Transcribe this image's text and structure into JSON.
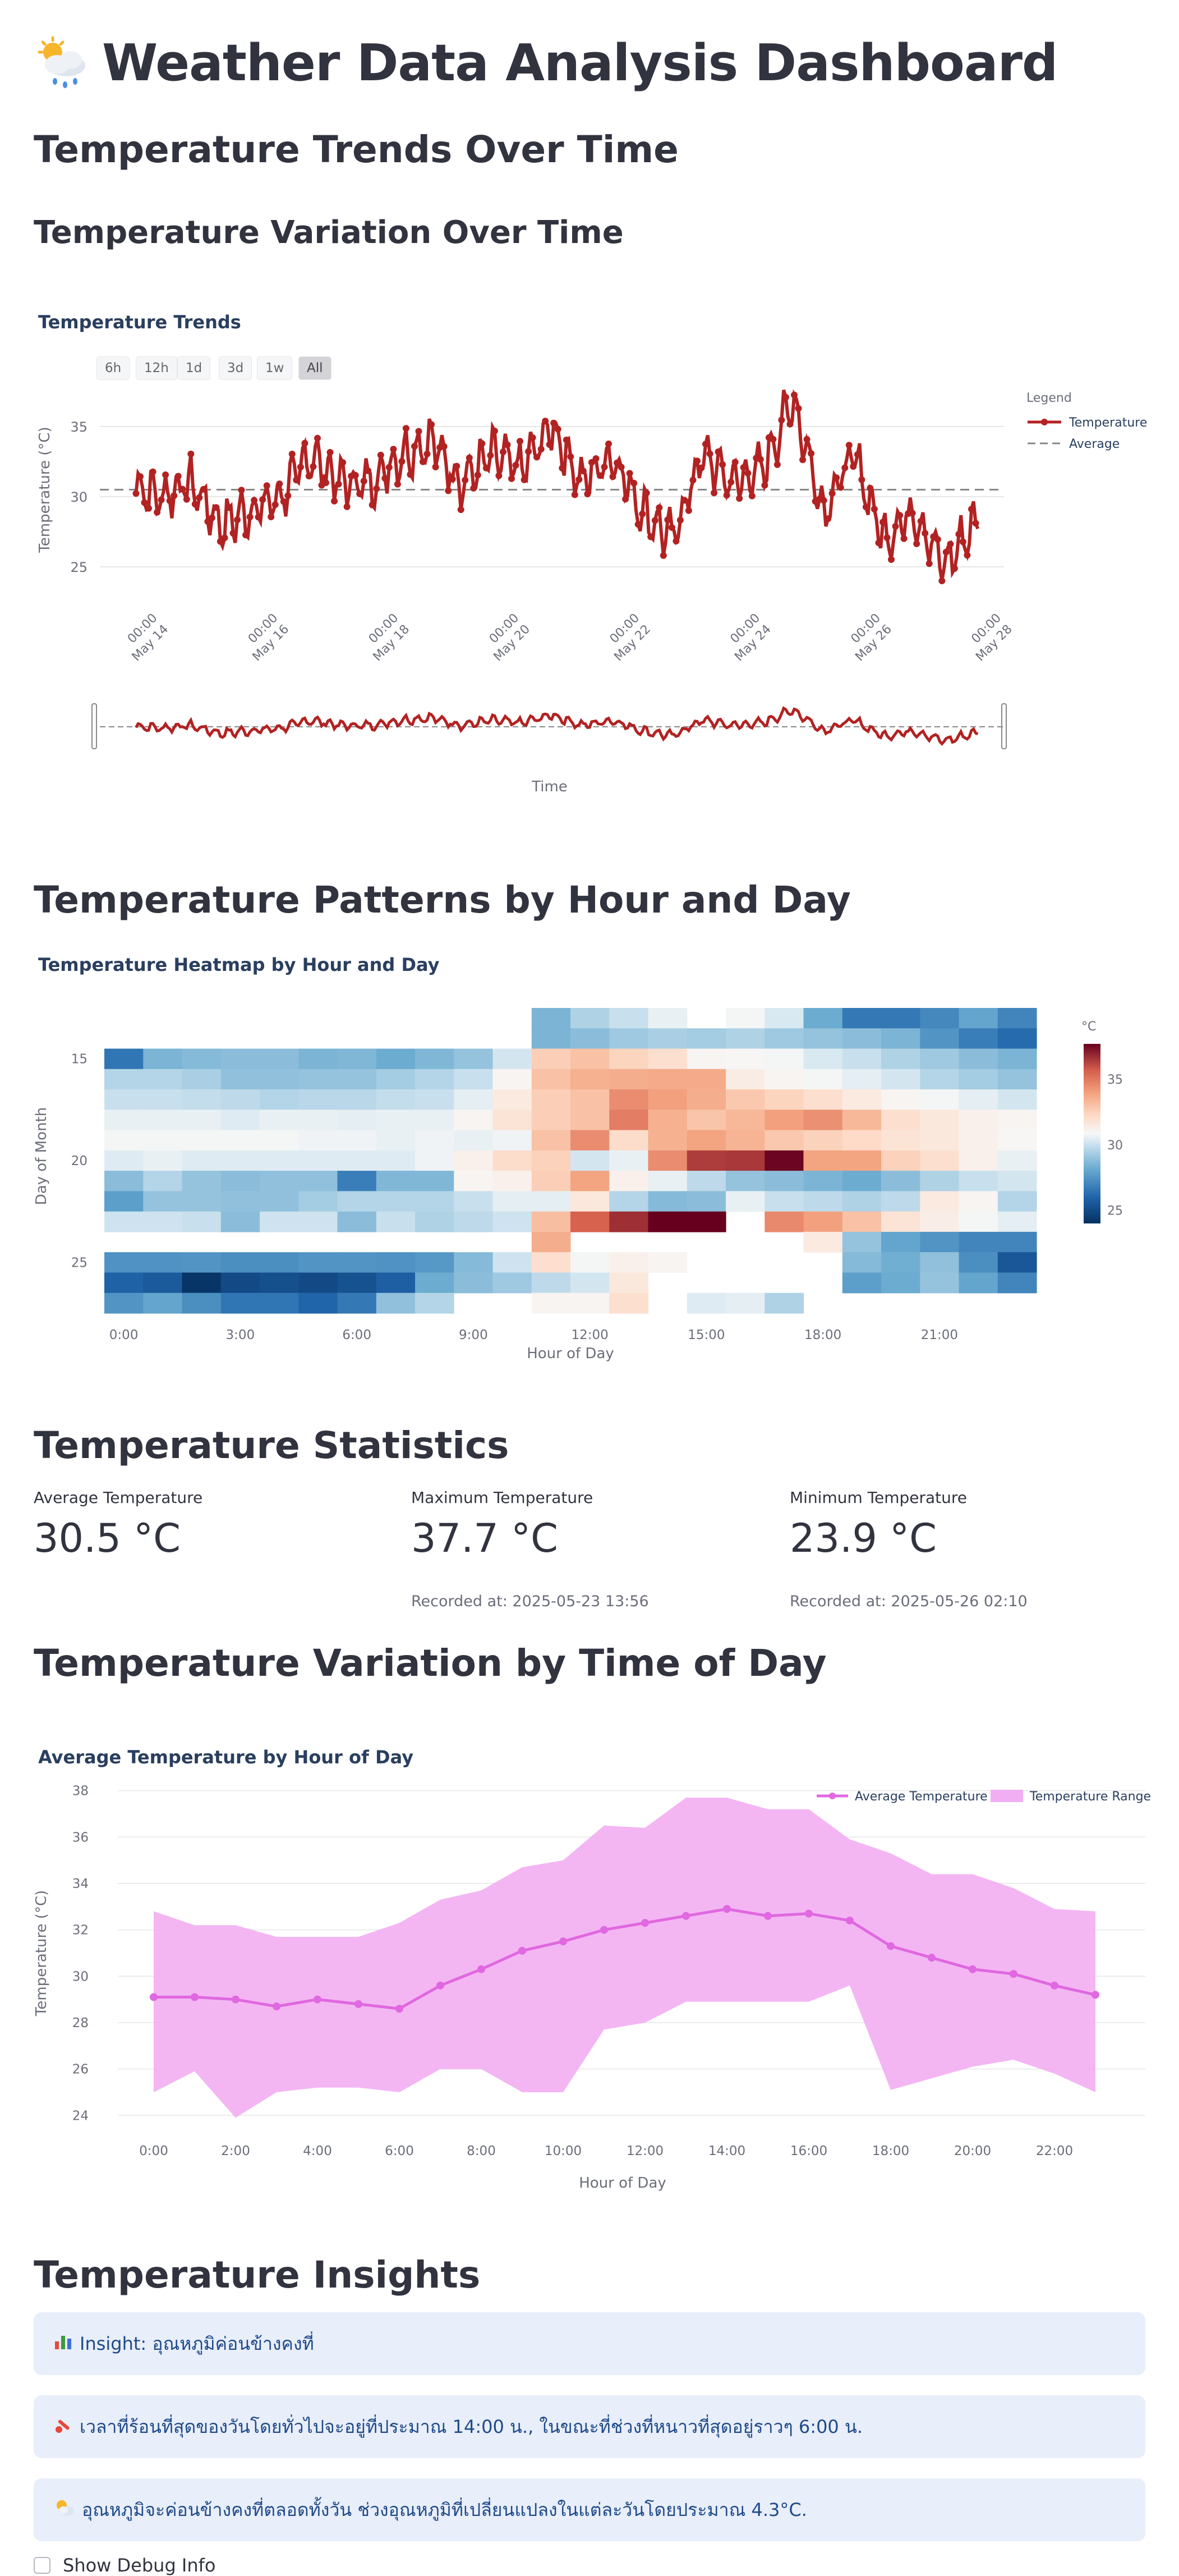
{
  "header": {
    "title": "Weather Data Analysis Dashboard",
    "icon": "cloud-sun-rain-icon"
  },
  "sections": {
    "trends": "Temperature Trends Over Time",
    "variation": "Temperature Variation Over Time",
    "patterns": "Temperature Patterns by Hour and Day",
    "statistics": "Temperature Statistics",
    "time_of_day": "Temperature Variation by Time of Day",
    "insights": "Temperature Insights"
  },
  "trend_chart": {
    "title": "Temperature Trends",
    "range_buttons": [
      "6h",
      "12h",
      "1d",
      "3d",
      "1w",
      "All"
    ],
    "active_range": "All",
    "ylabel": "Temperature (°C)",
    "xlabel": "Time",
    "y_ticks": [
      "35",
      "30",
      "25"
    ],
    "x_ticks": [
      {
        "time": "00:00",
        "date": "May 14"
      },
      {
        "time": "00:00",
        "date": "May 16"
      },
      {
        "time": "00:00",
        "date": "May 18"
      },
      {
        "time": "00:00",
        "date": "May 20"
      },
      {
        "time": "00:00",
        "date": "May 22"
      },
      {
        "time": "00:00",
        "date": "May 24"
      },
      {
        "time": "00:00",
        "date": "May 26"
      },
      {
        "time": "00:00",
        "date": "May 28"
      }
    ],
    "legend_title": "Legend",
    "legend": [
      "Temperature",
      "Average"
    ],
    "line_color": "#b22222",
    "avg_color": "#888888"
  },
  "heatmap": {
    "title": "Temperature Heatmap by Hour and Day",
    "ylabel": "Day of Month",
    "xlabel": "Hour of Day",
    "x_ticks": [
      "0:00",
      "3:00",
      "6:00",
      "9:00",
      "12:00",
      "15:00",
      "18:00",
      "21:00"
    ],
    "y_ticks": [
      "15",
      "20",
      "25"
    ],
    "colorbar_title": "°C",
    "colorbar_ticks": [
      "35",
      "30",
      "25"
    ]
  },
  "stats": [
    {
      "label": "Average Temperature",
      "value": "30.5 °C",
      "sub": ""
    },
    {
      "label": "Maximum Temperature",
      "value": "37.7 °C",
      "sub": "Recorded at: 2025-05-23 13:56"
    },
    {
      "label": "Minimum Temperature",
      "value": "23.9 °C",
      "sub": "Recorded at: 2025-05-26 02:10"
    }
  ],
  "hourly_chart": {
    "title": "Average Temperature by Hour of Day",
    "ylabel": "Temperature (°C)",
    "xlabel": "Hour of Day",
    "legend": [
      "Average Temperature",
      "Temperature Range"
    ],
    "y_ticks": [
      "38",
      "36",
      "34",
      "32",
      "30",
      "28",
      "26",
      "24"
    ],
    "x_ticks": [
      "0:00",
      "2:00",
      "4:00",
      "6:00",
      "8:00",
      "10:00",
      "12:00",
      "14:00",
      "16:00",
      "18:00",
      "20:00",
      "22:00"
    ],
    "line_color": "#e068e0",
    "fill_color": "#f2aef2"
  },
  "chart_data": [
    {
      "type": "line",
      "title": "Average Temperature by Hour of Day",
      "xlabel": "Hour of Day",
      "ylabel": "Temperature (°C)",
      "x": [
        0,
        1,
        2,
        3,
        4,
        5,
        6,
        7,
        8,
        9,
        10,
        11,
        12,
        13,
        14,
        15,
        16,
        17,
        18,
        19,
        20,
        21,
        22,
        23
      ],
      "ylim": [
        23.5,
        38.5
      ],
      "series": [
        {
          "name": "Average Temperature",
          "values": [
            29.1,
            29.1,
            29.0,
            28.7,
            29.0,
            28.8,
            28.6,
            29.6,
            30.3,
            31.1,
            31.5,
            32.0,
            32.3,
            32.6,
            32.9,
            32.6,
            32.7,
            32.4,
            31.3,
            30.8,
            30.3,
            30.1,
            29.6,
            29.2
          ]
        },
        {
          "name": "Temperature Range",
          "upper": [
            32.8,
            32.2,
            32.2,
            31.7,
            31.7,
            31.7,
            32.3,
            33.3,
            33.7,
            34.7,
            35.0,
            36.5,
            36.4,
            37.7,
            37.7,
            37.2,
            37.2,
            35.9,
            35.3,
            34.4,
            34.4,
            33.8,
            32.9,
            32.8
          ],
          "lower": [
            25.0,
            25.9,
            23.9,
            25.0,
            25.2,
            25.2,
            25.0,
            26.0,
            26.0,
            25.0,
            25.0,
            27.7,
            28.0,
            28.9,
            28.9,
            28.9,
            28.9,
            29.6,
            25.1,
            25.6,
            26.1,
            26.4,
            25.8,
            25.0
          ]
        }
      ],
      "grid": true,
      "legend": "top-right"
    },
    {
      "type": "line",
      "title": "Temperature Trends",
      "xlabel": "Time",
      "ylabel": "Temperature (°C)",
      "x_range": [
        "2025-05-13",
        "2025-05-28"
      ],
      "ylim": [
        23,
        38
      ],
      "series": [
        {
          "name": "Temperature",
          "x": [
            "05-13 00:00",
            "05-13 12:00",
            "05-14 00:00",
            "05-14 12:00",
            "05-15 00:00",
            "05-15 12:00",
            "05-16 00:00",
            "05-16 12:00",
            "05-17 00:00",
            "05-17 12:00",
            "05-18 00:00",
            "05-18 12:00",
            "05-19 00:00",
            "05-19 12:00",
            "05-20 00:00",
            "05-20 12:00",
            "05-21 00:00",
            "05-21 12:00",
            "05-22 00:00",
            "05-22 12:00",
            "05-23 00:00",
            "05-23 12:00",
            "05-24 00:00",
            "05-24 12:00",
            "05-25 00:00",
            "05-25 12:00",
            "05-26 00:00",
            "05-26 12:00",
            "05-27 00:00",
            "05-27 12:00",
            "05-28 00:00"
          ],
          "values": [
            29,
            31,
            30,
            31,
            28,
            29,
            30,
            33,
            31,
            31,
            33,
            34,
            31,
            33,
            32,
            35,
            31,
            33,
            29,
            27,
            33,
            31,
            32,
            37,
            29,
            33,
            27,
            29,
            25,
            28,
            30
          ]
        },
        {
          "name": "Average",
          "values": [
            30.5
          ]
        }
      ],
      "legend": "top-right"
    },
    {
      "type": "heatmap",
      "title": "Temperature Heatmap by Hour and Day",
      "xlabel": "Hour of Day",
      "ylabel": "Day of Month",
      "x": [
        0,
        1,
        2,
        3,
        4,
        5,
        6,
        7,
        8,
        9,
        10,
        11,
        12,
        13,
        14,
        15,
        16,
        17,
        18,
        19,
        20,
        21,
        22,
        23
      ],
      "y": [
        13,
        14,
        15,
        16,
        17,
        18,
        19,
        20,
        21,
        22,
        23,
        24,
        25,
        26,
        27
      ],
      "zlim": [
        24,
        37.7
      ],
      "z": [
        [
          null,
          null,
          null,
          null,
          null,
          null,
          null,
          null,
          null,
          null,
          null,
          28.5,
          29.5,
          30.0,
          30.6,
          null,
          30.8,
          30.3,
          28.2,
          26.6,
          26.6,
          27.1,
          28.0,
          27.0
        ],
        [
          null,
          null,
          null,
          null,
          null,
          null,
          null,
          null,
          null,
          null,
          null,
          28.5,
          28.8,
          29.2,
          29.4,
          29.3,
          29.5,
          29.2,
          29.0,
          28.8,
          28.5,
          27.5,
          26.8,
          26.2
        ],
        [
          26.5,
          28.5,
          28.7,
          28.8,
          28.8,
          28.5,
          28.6,
          28.2,
          28.6,
          29.0,
          30.2,
          32.6,
          33.0,
          32.4,
          32.0,
          31.0,
          30.9,
          30.8,
          30.3,
          30.0,
          29.5,
          29.2,
          28.8,
          28.5
        ],
        [
          29.6,
          29.6,
          29.4,
          28.9,
          28.9,
          29.0,
          29.0,
          29.3,
          29.6,
          30.0,
          31.0,
          33.0,
          33.5,
          33.6,
          33.7,
          33.7,
          31.4,
          31.0,
          30.8,
          30.5,
          30.2,
          29.6,
          29.3,
          29.0
        ],
        [
          30.0,
          30.0,
          29.9,
          29.8,
          29.6,
          29.7,
          29.7,
          29.9,
          30.0,
          30.5,
          31.5,
          32.6,
          33.0,
          34.5,
          34.0,
          33.6,
          32.8,
          32.4,
          32.0,
          31.5,
          31.0,
          30.8,
          30.5,
          30.2
        ],
        [
          30.6,
          30.6,
          30.6,
          30.4,
          30.6,
          30.6,
          30.5,
          30.6,
          30.6,
          31.0,
          31.8,
          32.6,
          33.0,
          34.9,
          33.5,
          32.9,
          33.3,
          34.0,
          34.4,
          33.3,
          32.0,
          31.6,
          31.2,
          31.0
        ],
        [
          30.8,
          30.8,
          30.8,
          30.8,
          30.8,
          30.7,
          30.7,
          30.6,
          30.7,
          30.6,
          30.7,
          33.0,
          34.5,
          32.1,
          33.5,
          33.9,
          33.4,
          32.8,
          32.5,
          32.2,
          31.8,
          31.6,
          31.2,
          30.9
        ],
        [
          30.4,
          30.6,
          30.4,
          30.4,
          30.4,
          30.4,
          30.4,
          30.4,
          30.7,
          31.2,
          32.1,
          32.5,
          30.2,
          30.6,
          34.5,
          36.4,
          36.5,
          37.6,
          33.9,
          33.9,
          32.5,
          32.0,
          31.2,
          30.6
        ],
        [
          28.8,
          29.6,
          29.0,
          28.8,
          28.9,
          28.9,
          26.8,
          28.6,
          28.6,
          31.0,
          31.2,
          32.6,
          33.9,
          31.2,
          30.6,
          29.8,
          29.0,
          28.8,
          28.5,
          28.2,
          28.8,
          29.5,
          30.0,
          30.2
        ],
        [
          27.8,
          29.0,
          29.0,
          28.9,
          28.9,
          29.3,
          29.6,
          29.6,
          29.6,
          30.0,
          30.5,
          30.5,
          31.6,
          29.6,
          28.7,
          28.8,
          30.6,
          30.0,
          29.8,
          29.5,
          29.8,
          31.5,
          31.0,
          29.6
        ],
        [
          30.1,
          30.1,
          30.0,
          28.8,
          30.1,
          30.1,
          28.8,
          30.0,
          29.5,
          29.8,
          30.1,
          33.1,
          35.6,
          36.7,
          37.7,
          37.7,
          null,
          34.6,
          34.0,
          33.0,
          31.8,
          31.3,
          30.8,
          30.5
        ],
        [
          null,
          null,
          null,
          null,
          null,
          null,
          null,
          null,
          null,
          null,
          null,
          33.6,
          null,
          null,
          null,
          null,
          null,
          null,
          31.5,
          29.0,
          28.0,
          27.5,
          27.0,
          27.0
        ],
        [
          27.4,
          27.4,
          27.5,
          27.3,
          27.3,
          27.5,
          27.5,
          27.4,
          27.6,
          28.7,
          30.1,
          32.0,
          30.8,
          31.2,
          31.0,
          null,
          null,
          null,
          null,
          28.7,
          28.3,
          28.9,
          27.3,
          25.5
        ],
        [
          25.9,
          25.6,
          24.2,
          25.0,
          25.2,
          25.0,
          25.3,
          25.8,
          28.2,
          28.8,
          29.2,
          29.8,
          30.2,
          31.6,
          null,
          null,
          null,
          null,
          null,
          27.8,
          28.2,
          29.0,
          28.0,
          27.0
        ],
        [
          27.5,
          28.0,
          27.3,
          26.5,
          26.5,
          26.0,
          26.6,
          28.9,
          29.6,
          null,
          null,
          31.0,
          31.0,
          32.0,
          null,
          30.4,
          30.5,
          29.5,
          null,
          null,
          null,
          null,
          null,
          null
        ]
      ]
    }
  ],
  "insights": [
    {
      "icon": "bar-chart-icon",
      "text": "Insight: อุณหภูมิค่อนข้างคงที่"
    },
    {
      "icon": "thermometer-icon",
      "text": "เวลาที่ร้อนที่สุดของวันโดยทั่วไปจะอยู่ที่ประมาณ 14:00 น., ในขณะที่ช่วงที่หนาวที่สุดอยู่ราวๆ 6:00 น."
    },
    {
      "icon": "sun-cloud-icon",
      "text": "อุณหภูมิจะค่อนข้างคงที่ตลอดทั้งวัน ช่วงอุณหภูมิที่เปลี่ยนแปลงในแต่ละวันโดยประมาณ 4.3°C."
    }
  ],
  "debug": {
    "label": "Show Debug Info",
    "checked": false
  }
}
